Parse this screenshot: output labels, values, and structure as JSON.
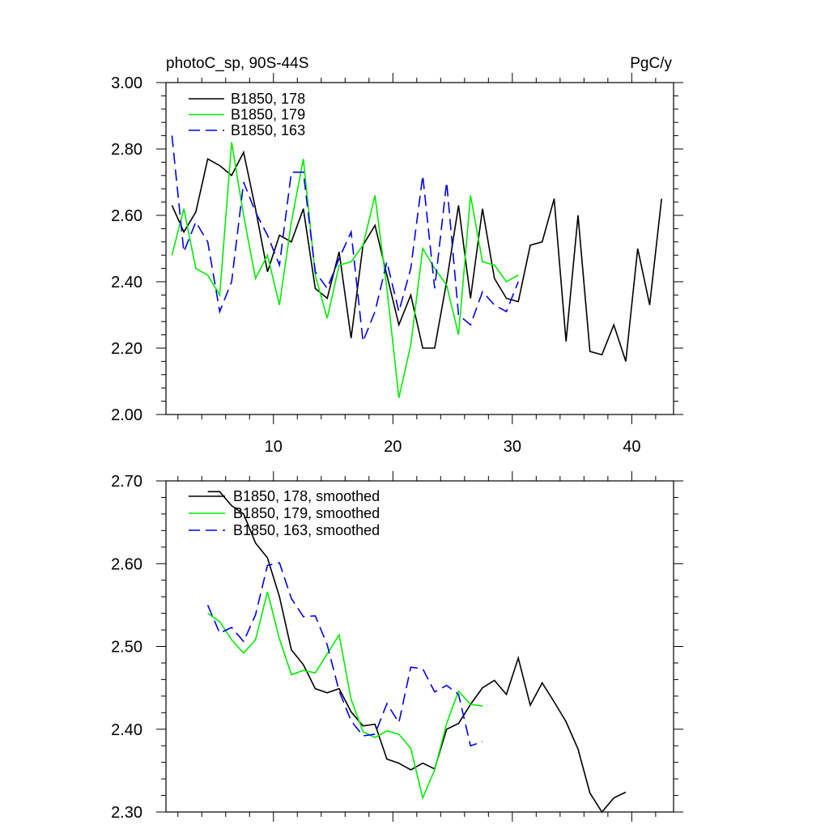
{
  "chart_data": [
    {
      "type": "line",
      "title_left": "photoC_sp, 90S-44S",
      "title_right": "PgC/y",
      "xlim": [
        1,
        43.5
      ],
      "ylim": [
        2.0,
        3.0
      ],
      "yticks": [
        "2.00",
        "2.20",
        "2.40",
        "2.60",
        "2.80",
        "3.00"
      ],
      "xticks": [
        "10",
        "20",
        "30",
        "40"
      ],
      "legend_position": "top-left",
      "series": [
        {
          "name": "B1850, 178",
          "color": "#000000",
          "style": "solid",
          "x": [
            1.5,
            2.5,
            3.5,
            4.5,
            5.5,
            6.5,
            7.5,
            8.5,
            9.5,
            10.5,
            11.5,
            12.5,
            13.5,
            14.5,
            15.5,
            16.5,
            17.5,
            18.5,
            19.5,
            20.5,
            21.5,
            22.5,
            23.5,
            24.5,
            25.5,
            26.5,
            27.5,
            28.5,
            29.5,
            30.5,
            31.5,
            32.5,
            33.5,
            34.5,
            35.5,
            36.5,
            37.5,
            38.5,
            39.5,
            40.5,
            41.5,
            42.5
          ],
          "values": [
            2.63,
            2.55,
            2.61,
            2.77,
            2.75,
            2.72,
            2.79,
            2.62,
            2.43,
            2.54,
            2.52,
            2.62,
            2.38,
            2.35,
            2.49,
            2.23,
            2.51,
            2.57,
            2.42,
            2.27,
            2.36,
            2.2,
            2.2,
            2.4,
            2.63,
            2.35,
            2.62,
            2.41,
            2.35,
            2.34,
            2.51,
            2.52,
            2.65,
            2.22,
            2.6,
            2.19,
            2.18,
            2.27,
            2.16,
            2.5,
            2.33,
            2.65
          ]
        },
        {
          "name": "B1850, 179",
          "color": "#00ee00",
          "style": "solid",
          "x": [
            1.5,
            2.5,
            3.5,
            4.5,
            5.5,
            6.5,
            7.5,
            8.5,
            9.5,
            10.5,
            11.5,
            12.5,
            13.5,
            14.5,
            15.5,
            16.5,
            17.5,
            18.5,
            19.5,
            20.5,
            21.5,
            22.5,
            23.5,
            24.5,
            25.5,
            26.5,
            27.5,
            28.5,
            29.5,
            30.5
          ],
          "values": [
            2.48,
            2.62,
            2.44,
            2.42,
            2.36,
            2.82,
            2.6,
            2.41,
            2.48,
            2.33,
            2.58,
            2.77,
            2.42,
            2.29,
            2.45,
            2.46,
            2.51,
            2.66,
            2.38,
            2.05,
            2.21,
            2.5,
            2.44,
            2.39,
            2.24,
            2.66,
            2.46,
            2.45,
            2.4,
            2.42
          ]
        },
        {
          "name": "B1850, 163",
          "color": "#0000ee",
          "style": "dashed",
          "x": [
            1.5,
            2.5,
            3.5,
            4.5,
            5.5,
            6.5,
            7.5,
            8.5,
            9.5,
            10.5,
            11.5,
            12.5,
            13.5,
            14.5,
            15.5,
            16.5,
            17.5,
            18.5,
            19.5,
            20.5,
            21.5,
            22.5,
            23.5,
            24.5,
            25.5,
            26.5,
            27.5,
            28.5,
            29.5,
            30.5
          ],
          "values": [
            2.84,
            2.49,
            2.58,
            2.52,
            2.31,
            2.4,
            2.7,
            2.61,
            2.54,
            2.45,
            2.73,
            2.73,
            2.43,
            2.38,
            2.47,
            2.55,
            2.22,
            2.31,
            2.46,
            2.31,
            2.44,
            2.72,
            2.38,
            2.7,
            2.3,
            2.27,
            2.37,
            2.33,
            2.31,
            2.4
          ]
        }
      ]
    },
    {
      "type": "line",
      "xlim": [
        1,
        43.5
      ],
      "ylim": [
        2.3,
        2.7
      ],
      "yticks": [
        "2.30",
        "2.40",
        "2.50",
        "2.60",
        "2.70"
      ],
      "xticks": [],
      "legend_position": "top-left",
      "series": [
        {
          "name": "B1850, 178, smoothed",
          "color": "#000000",
          "style": "solid",
          "x": [
            4.5,
            5.5,
            6.5,
            7.5,
            8.5,
            9.5,
            10.5,
            11.5,
            12.5,
            13.5,
            14.5,
            15.5,
            16.5,
            17.5,
            18.5,
            19.5,
            20.5,
            21.5,
            22.5,
            23.5,
            24.5,
            25.5,
            26.5,
            27.5,
            28.5,
            29.5,
            30.5,
            31.5,
            32.5,
            33.5,
            34.5,
            35.5,
            36.5,
            37.5,
            38.5,
            39.5
          ],
          "values": [
            2.687,
            2.687,
            2.67,
            2.66,
            2.625,
            2.607,
            2.56,
            2.496,
            2.478,
            2.449,
            2.444,
            2.449,
            2.421,
            2.404,
            2.406,
            2.364,
            2.359,
            2.351,
            2.359,
            2.352,
            2.4,
            2.407,
            2.43,
            2.45,
            2.459,
            2.442,
            2.486,
            2.429,
            2.456,
            2.433,
            2.409,
            2.376,
            2.323,
            2.3,
            2.317,
            2.324
          ]
        },
        {
          "name": "B1850, 179, smoothed",
          "color": "#00ee00",
          "style": "solid",
          "x": [
            4.5,
            5.5,
            6.5,
            7.5,
            8.5,
            9.5,
            10.5,
            11.5,
            12.5,
            13.5,
            14.5,
            15.5,
            16.5,
            17.5,
            18.5,
            19.5,
            20.5,
            21.5,
            22.5,
            23.5,
            24.5,
            25.5,
            26.5,
            27.5
          ],
          "values": [
            2.54,
            2.53,
            2.508,
            2.492,
            2.508,
            2.566,
            2.509,
            2.466,
            2.471,
            2.468,
            2.491,
            2.514,
            2.436,
            2.397,
            2.39,
            2.398,
            2.394,
            2.377,
            2.317,
            2.351,
            2.407,
            2.446,
            2.43,
            2.428
          ]
        },
        {
          "name": "B1850, 163, smoothed",
          "color": "#0000ee",
          "style": "dashed",
          "x": [
            4.5,
            5.5,
            6.5,
            7.5,
            8.5,
            9.5,
            10.5,
            11.5,
            12.5,
            13.5,
            14.5,
            15.5,
            16.5,
            17.5,
            18.5,
            19.5,
            20.5,
            21.5,
            22.5,
            23.5,
            24.5,
            25.5,
            26.5,
            27.5
          ],
          "values": [
            2.55,
            2.516,
            2.523,
            2.506,
            2.538,
            2.598,
            2.601,
            2.558,
            2.536,
            2.537,
            2.502,
            2.446,
            2.41,
            2.392,
            2.394,
            2.431,
            2.408,
            2.475,
            2.473,
            2.445,
            2.453,
            2.442,
            2.38,
            2.385
          ]
        }
      ]
    }
  ]
}
